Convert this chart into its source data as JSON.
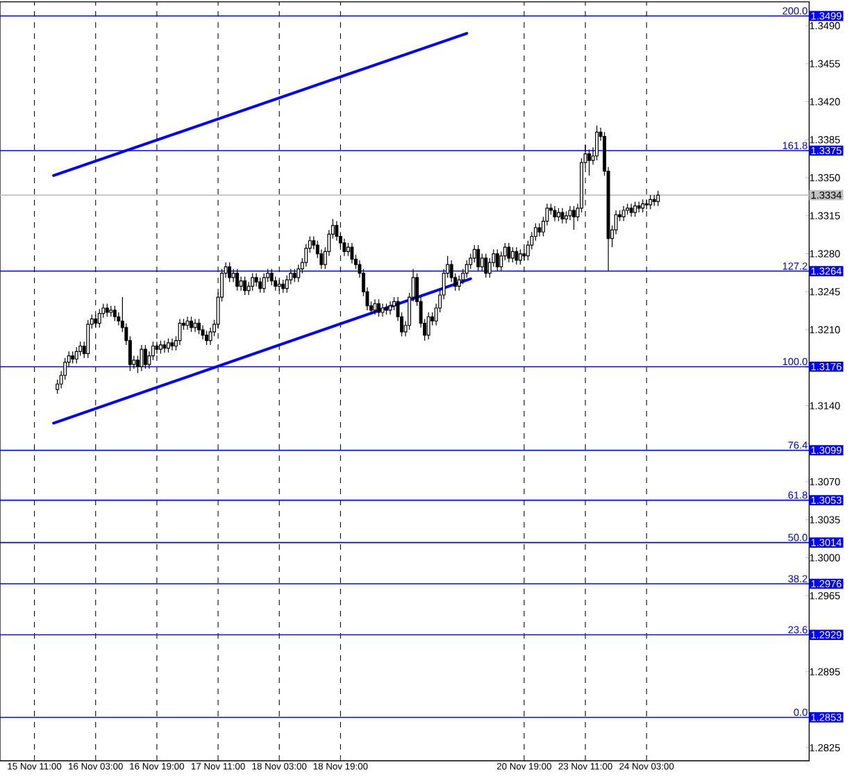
{
  "chart_data": {
    "type": "candlestick",
    "categories": [
      "15 Nov 11:00",
      null,
      null,
      null,
      null,
      null,
      null,
      null,
      null,
      null,
      null,
      null,
      null,
      null,
      null,
      null,
      "16 Nov 03:00",
      null,
      null,
      null,
      null,
      null,
      null,
      null,
      null,
      null,
      null,
      null,
      null,
      null,
      null,
      null,
      "16 Nov 19:00",
      null,
      null,
      null,
      null,
      null,
      null,
      null,
      null,
      null,
      null,
      null,
      null,
      null,
      null,
      null,
      "17 Nov 11:00",
      null,
      null,
      null,
      null,
      null,
      null,
      null,
      null,
      null,
      null,
      null,
      null,
      null,
      null,
      null,
      "18 Nov 03:00",
      null,
      null,
      null,
      null,
      null,
      null,
      null,
      null,
      null,
      null,
      null,
      null,
      null,
      null,
      null,
      "18 Nov 19:00",
      null,
      null,
      null,
      null,
      null,
      null,
      null,
      null,
      null,
      null,
      null,
      null,
      null,
      null,
      null,
      null,
      null,
      null,
      null,
      null,
      null,
      null,
      null,
      null,
      null,
      null,
      null,
      null,
      null,
      null,
      null,
      null,
      null,
      null,
      null,
      null,
      null,
      null,
      null,
      null,
      null,
      null,
      null,
      null,
      null,
      null,
      null,
      "20 Nov 19:00",
      null,
      null,
      null,
      null,
      null,
      null,
      null,
      null,
      null,
      null,
      null,
      null,
      null,
      null,
      null,
      "23 Nov 11:00",
      null,
      null,
      null,
      null,
      null,
      null,
      null,
      null,
      null,
      null,
      null,
      null,
      null,
      null,
      null,
      "24 Nov 03:00",
      null,
      null,
      null,
      null,
      null,
      null,
      null,
      null,
      null,
      null,
      null,
      null,
      null,
      null,
      null,
      null,
      null,
      null,
      null,
      null,
      null,
      null,
      null,
      null,
      null,
      null,
      null,
      null,
      null,
      null,
      null,
      null,
      null,
      null,
      null,
      null,
      null,
      null,
      null,
      null,
      null,
      null
    ],
    "ohlc": [
      null,
      null,
      null,
      null,
      null,
      null,
      [
        1.3155,
        1.3164,
        1.3151,
        1.316
      ],
      [
        1.316,
        1.3172,
        1.3156,
        1.3168
      ],
      [
        1.3168,
        1.3184,
        1.3164,
        1.318
      ],
      [
        1.318,
        1.319,
        1.3176,
        1.3186
      ],
      [
        1.3186,
        1.319,
        1.3179,
        1.3183
      ],
      [
        1.3183,
        1.3194,
        1.3179,
        1.319
      ],
      [
        1.319,
        1.3199,
        1.3186,
        1.3195
      ],
      [
        1.3195,
        1.3199,
        1.3184,
        1.3188
      ],
      [
        1.3188,
        1.3219,
        1.3184,
        1.3215
      ],
      [
        1.3215,
        1.3224,
        1.3211,
        1.322
      ],
      [
        1.322,
        1.3224,
        1.3212,
        1.3216
      ],
      [
        1.3216,
        1.3229,
        1.3212,
        1.3225
      ],
      [
        1.3225,
        1.3234,
        1.3221,
        1.323
      ],
      [
        1.323,
        1.3234,
        1.3222,
        1.3226
      ],
      [
        1.3226,
        1.3232,
        1.3222,
        1.3228
      ],
      [
        1.3228,
        1.3232,
        1.3218,
        1.3222
      ],
      [
        1.3222,
        1.3226,
        1.3214,
        1.3218
      ],
      [
        1.3218,
        1.324,
        1.3208,
        1.3212
      ],
      [
        1.3212,
        1.3216,
        1.3196,
        1.32
      ],
      [
        1.32,
        1.3204,
        1.3172,
        1.3178
      ],
      [
        1.3178,
        1.3186,
        1.3174,
        1.3182
      ],
      [
        1.3182,
        1.3186,
        1.317,
        1.3176
      ],
      [
        1.3176,
        1.3196,
        1.3172,
        1.3192
      ],
      [
        1.3192,
        1.3196,
        1.3174,
        1.3178
      ],
      [
        1.3178,
        1.319,
        1.3174,
        1.3186
      ],
      [
        1.3186,
        1.3199,
        1.3182,
        1.3195
      ],
      [
        1.3195,
        1.3199,
        1.3188,
        1.3192
      ],
      [
        1.3192,
        1.32,
        1.3188,
        1.3196
      ],
      [
        1.3196,
        1.32,
        1.3189,
        1.3193
      ],
      [
        1.3193,
        1.3202,
        1.3189,
        1.3198
      ],
      [
        1.3198,
        1.3202,
        1.3191,
        1.3195
      ],
      [
        1.3195,
        1.3204,
        1.3191,
        1.32
      ],
      [
        1.32,
        1.322,
        1.3196,
        1.3216
      ],
      [
        1.3216,
        1.322,
        1.321,
        1.3214
      ],
      [
        1.3214,
        1.3222,
        1.321,
        1.3218
      ],
      [
        1.3218,
        1.3222,
        1.3208,
        1.3212
      ],
      [
        1.3212,
        1.322,
        1.3208,
        1.3216
      ],
      [
        1.3216,
        1.322,
        1.3206,
        1.321
      ],
      [
        1.321,
        1.3214,
        1.3201,
        1.3205
      ],
      [
        1.3205,
        1.3209,
        1.3196,
        1.32
      ],
      [
        1.32,
        1.3212,
        1.3196,
        1.3208
      ],
      [
        1.3208,
        1.3219,
        1.3204,
        1.3215
      ],
      [
        1.3215,
        1.3244,
        1.3211,
        1.324
      ],
      [
        1.324,
        1.3266,
        1.3236,
        1.3262
      ],
      [
        1.3262,
        1.3272,
        1.3258,
        1.3268
      ],
      [
        1.3268,
        1.3272,
        1.3254,
        1.3258
      ],
      [
        1.3258,
        1.3266,
        1.3254,
        1.3262
      ],
      [
        1.3262,
        1.3266,
        1.3246,
        1.325
      ],
      [
        1.325,
        1.3259,
        1.3246,
        1.3255
      ],
      [
        1.3255,
        1.3259,
        1.3242,
        1.3246
      ],
      [
        1.3246,
        1.3254,
        1.3242,
        1.325
      ],
      [
        1.325,
        1.3262,
        1.3246,
        1.3258
      ],
      [
        1.3258,
        1.3262,
        1.325,
        1.3254
      ],
      [
        1.3254,
        1.3258,
        1.3244,
        1.3248
      ],
      [
        1.3248,
        1.3262,
        1.3244,
        1.3258
      ],
      [
        1.3258,
        1.3266,
        1.3254,
        1.3262
      ],
      [
        1.3262,
        1.3266,
        1.3251,
        1.3255
      ],
      [
        1.3255,
        1.3259,
        1.3246,
        1.325
      ],
      [
        1.325,
        1.3256,
        1.3246,
        1.3252
      ],
      [
        1.3252,
        1.3256,
        1.3244,
        1.3248
      ],
      [
        1.3248,
        1.326,
        1.3244,
        1.3256
      ],
      [
        1.3256,
        1.3266,
        1.3252,
        1.3262
      ],
      [
        1.3262,
        1.3266,
        1.3254,
        1.3258
      ],
      [
        1.3258,
        1.327,
        1.3254,
        1.3266
      ],
      [
        1.3266,
        1.3276,
        1.3262,
        1.3272
      ],
      [
        1.3272,
        1.3289,
        1.3268,
        1.3285
      ],
      [
        1.3285,
        1.3296,
        1.3281,
        1.3292
      ],
      [
        1.3292,
        1.3296,
        1.3284,
        1.3288
      ],
      [
        1.3288,
        1.3292,
        1.3276,
        1.328
      ],
      [
        1.328,
        1.3284,
        1.3266,
        1.327
      ],
      [
        1.327,
        1.3286,
        1.3266,
        1.3282
      ],
      [
        1.3282,
        1.3302,
        1.3278,
        1.3298
      ],
      [
        1.3298,
        1.3312,
        1.3294,
        1.3306
      ],
      [
        1.3306,
        1.331,
        1.3292,
        1.3296
      ],
      [
        1.3296,
        1.33,
        1.3286,
        1.329
      ],
      [
        1.329,
        1.3294,
        1.3278,
        1.3282
      ],
      [
        1.3282,
        1.329,
        1.3278,
        1.3286
      ],
      [
        1.3286,
        1.329,
        1.3271,
        1.3275
      ],
      [
        1.3275,
        1.3279,
        1.3266,
        1.327
      ],
      [
        1.327,
        1.3274,
        1.3258,
        1.3262
      ],
      [
        1.3262,
        1.3266,
        1.3241,
        1.3245
      ],
      [
        1.3245,
        1.3249,
        1.3228,
        1.3232
      ],
      [
        1.3232,
        1.3236,
        1.3224,
        1.3228
      ],
      [
        1.3228,
        1.3238,
        1.3224,
        1.3234
      ],
      [
        1.3234,
        1.3238,
        1.3222,
        1.3226
      ],
      [
        1.3226,
        1.3234,
        1.3222,
        1.323
      ],
      [
        1.323,
        1.3234,
        1.3224,
        1.3228
      ],
      [
        1.3228,
        1.3236,
        1.3224,
        1.3232
      ],
      [
        1.3232,
        1.324,
        1.3228,
        1.3236
      ],
      [
        1.3236,
        1.324,
        1.3218,
        1.3222
      ],
      [
        1.3222,
        1.3226,
        1.3204,
        1.3208
      ],
      [
        1.3208,
        1.3218,
        1.3204,
        1.3214
      ],
      [
        1.3214,
        1.3244,
        1.321,
        1.324
      ],
      [
        1.324,
        1.3266,
        1.3236,
        1.3258
      ],
      [
        1.3258,
        1.3262,
        1.3232,
        1.3236
      ],
      [
        1.3236,
        1.324,
        1.3212,
        1.3216
      ],
      [
        1.3216,
        1.322,
        1.32,
        1.3205
      ],
      [
        1.3205,
        1.3226,
        1.3201,
        1.3222
      ],
      [
        1.3222,
        1.3226,
        1.3214,
        1.3218
      ],
      [
        1.3218,
        1.3234,
        1.3214,
        1.323
      ],
      [
        1.323,
        1.3246,
        1.3226,
        1.3242
      ],
      [
        1.3242,
        1.3266,
        1.3238,
        1.3262
      ],
      [
        1.3262,
        1.3278,
        1.3258,
        1.327
      ],
      [
        1.327,
        1.3274,
        1.3254,
        1.3258
      ],
      [
        1.3258,
        1.3262,
        1.3246,
        1.325
      ],
      [
        1.325,
        1.326,
        1.3246,
        1.3256
      ],
      [
        1.3256,
        1.3266,
        1.3252,
        1.3262
      ],
      [
        1.3262,
        1.3274,
        1.3258,
        1.327
      ],
      [
        1.327,
        1.328,
        1.3266,
        1.3276
      ],
      [
        1.3276,
        1.3288,
        1.3272,
        1.3284
      ],
      [
        1.3284,
        1.3288,
        1.3264,
        1.3268
      ],
      [
        1.3268,
        1.328,
        1.3264,
        1.3276
      ],
      [
        1.3276,
        1.328,
        1.3258,
        1.3262
      ],
      [
        1.3262,
        1.3276,
        1.3258,
        1.3272
      ],
      [
        1.3272,
        1.3284,
        1.3268,
        1.328
      ],
      [
        1.328,
        1.3284,
        1.3264,
        1.3268
      ],
      [
        1.3268,
        1.3282,
        1.3264,
        1.3278
      ],
      [
        1.3278,
        1.329,
        1.3274,
        1.3286
      ],
      [
        1.3286,
        1.329,
        1.3272,
        1.3276
      ],
      [
        1.3276,
        1.3286,
        1.3272,
        1.3282
      ],
      [
        1.3282,
        1.3286,
        1.327,
        1.3274
      ],
      [
        1.3274,
        1.3284,
        1.327,
        1.328
      ],
      [
        1.328,
        1.3284,
        1.3274,
        1.3278
      ],
      [
        1.3278,
        1.3292,
        1.3274,
        1.3288
      ],
      [
        1.3288,
        1.33,
        1.3284,
        1.3296
      ],
      [
        1.3296,
        1.3308,
        1.3292,
        1.3304
      ],
      [
        1.3304,
        1.3308,
        1.3296,
        1.33
      ],
      [
        1.33,
        1.3314,
        1.3296,
        1.331
      ],
      [
        1.331,
        1.3326,
        1.3306,
        1.3322
      ],
      [
        1.3322,
        1.3326,
        1.3316,
        1.332
      ],
      [
        1.332,
        1.3324,
        1.331,
        1.3314
      ],
      [
        1.3314,
        1.3322,
        1.331,
        1.3318
      ],
      [
        1.3318,
        1.3322,
        1.3308,
        1.3312
      ],
      [
        1.3312,
        1.3319,
        1.3308,
        1.3315
      ],
      [
        1.3315,
        1.3324,
        1.3311,
        1.332
      ],
      [
        1.332,
        1.3324,
        1.3302,
        1.3314
      ],
      [
        1.3314,
        1.3326,
        1.331,
        1.3322
      ],
      [
        1.3322,
        1.3368,
        1.3318,
        1.3364
      ],
      [
        1.3364,
        1.338,
        1.336,
        1.3372
      ],
      [
        1.3372,
        1.3376,
        1.3352,
        1.3366
      ],
      [
        1.3366,
        1.3378,
        1.3362,
        1.337
      ],
      [
        1.337,
        1.3398,
        1.3366,
        1.3392
      ],
      [
        1.3392,
        1.3396,
        1.3384,
        1.3388
      ],
      [
        1.3388,
        1.3392,
        1.3352,
        1.3356
      ],
      [
        1.3356,
        1.336,
        1.3264,
        1.3294
      ],
      [
        1.3294,
        1.3306,
        1.3286,
        1.3302
      ],
      [
        1.3302,
        1.332,
        1.3298,
        1.3316
      ],
      [
        1.3316,
        1.332,
        1.331,
        1.3314
      ],
      [
        1.3314,
        1.3324,
        1.331,
        1.332
      ],
      [
        1.332,
        1.3326,
        1.3316,
        1.3322
      ],
      [
        1.3322,
        1.3326,
        1.3314,
        1.3318
      ],
      [
        1.3318,
        1.3328,
        1.3314,
        1.3324
      ],
      [
        1.3324,
        1.3328,
        1.3318,
        1.3322
      ],
      [
        1.3322,
        1.333,
        1.3318,
        1.3326
      ],
      [
        1.3326,
        1.333,
        1.3321,
        1.3325
      ],
      [
        1.3325,
        1.3334,
        1.3321,
        1.333
      ],
      [
        1.333,
        1.3334,
        1.3324,
        1.3328
      ],
      [
        1.3328,
        1.3338,
        1.3324,
        1.3334
      ],
      null,
      null,
      null,
      null,
      null,
      null,
      null,
      null,
      null,
      null,
      null,
      null,
      null,
      null,
      null,
      null,
      null,
      null,
      null,
      null,
      null,
      null,
      null,
      null,
      null,
      null,
      null,
      null,
      null,
      null,
      null,
      null,
      null,
      null,
      null,
      null,
      null,
      null,
      null
    ],
    "series": [
      {
        "type": "line",
        "color": "#0000ff",
        "values": [
          null,
          null,
          null,
          null,
          null,
          1.3352,
          null,
          null,
          null,
          null,
          null,
          null,
          null,
          null,
          null,
          null,
          null,
          null,
          null,
          null,
          null,
          null,
          null,
          null,
          null,
          null,
          null,
          null,
          null,
          null,
          null,
          null,
          null,
          null,
          null,
          null,
          null,
          null,
          null,
          null,
          null,
          null,
          null,
          null,
          null,
          null,
          null,
          null,
          null,
          null,
          null,
          null,
          null,
          null,
          null,
          null,
          null,
          null,
          null,
          null,
          null,
          null,
          null,
          null,
          null,
          null,
          null,
          null,
          null,
          null,
          null,
          null,
          null,
          null,
          null,
          null,
          null,
          null,
          null,
          null,
          null,
          null,
          null,
          null,
          null,
          null,
          null,
          null,
          null,
          null,
          null,
          null,
          null,
          null,
          null,
          null,
          null,
          null,
          null,
          null,
          null,
          null,
          null,
          null,
          null,
          null,
          null,
          null,
          null,
          null,
          null,
          null,
          null,
          1.3483,
          null,
          null,
          null,
          null,
          null,
          null,
          null,
          null,
          null,
          null,
          null,
          null,
          null,
          null,
          null,
          null,
          null,
          null,
          null,
          null,
          null,
          null,
          null,
          null,
          null,
          null,
          null,
          null,
          null,
          null,
          null,
          null,
          null,
          null,
          null,
          null,
          null,
          null,
          null,
          null,
          null,
          null,
          null,
          null,
          null,
          null,
          null,
          null,
          null,
          null,
          null,
          null,
          null,
          null,
          null,
          null,
          null,
          null,
          null,
          null,
          null,
          null,
          null,
          null,
          null,
          null,
          null,
          null,
          null,
          null,
          null,
          null,
          null,
          null,
          null,
          null,
          null,
          null,
          null,
          null,
          null,
          null,
          null,
          null,
          null,
          null,
          null,
          null,
          null
        ]
      },
      {
        "type": "line",
        "color": "#0000ff",
        "values": [
          null,
          null,
          null,
          null,
          null,
          1.3124,
          null,
          null,
          null,
          null,
          null,
          null,
          null,
          null,
          null,
          null,
          null,
          null,
          null,
          null,
          null,
          null,
          null,
          null,
          null,
          null,
          null,
          null,
          null,
          null,
          null,
          null,
          null,
          null,
          null,
          null,
          null,
          null,
          null,
          null,
          null,
          null,
          null,
          null,
          null,
          null,
          null,
          null,
          null,
          null,
          null,
          null,
          null,
          null,
          null,
          null,
          null,
          null,
          null,
          null,
          null,
          null,
          null,
          null,
          null,
          null,
          null,
          null,
          null,
          null,
          null,
          null,
          null,
          null,
          null,
          null,
          null,
          null,
          null,
          null,
          null,
          null,
          null,
          null,
          null,
          null,
          null,
          null,
          null,
          null,
          null,
          null,
          null,
          null,
          null,
          null,
          null,
          null,
          null,
          null,
          null,
          null,
          null,
          null,
          null,
          null,
          null,
          null,
          null,
          null,
          null,
          null,
          null,
          null,
          1.3257,
          null,
          null,
          null,
          null,
          null,
          null,
          null,
          null,
          null,
          null,
          null,
          null,
          null,
          null,
          null,
          null,
          null,
          null,
          null,
          null,
          null,
          null,
          null,
          null,
          null,
          null,
          null,
          null,
          null,
          null,
          null,
          null,
          null,
          null,
          null,
          null,
          null,
          null,
          null,
          null,
          null,
          null,
          null,
          null,
          null,
          null,
          null,
          null,
          null,
          null,
          null,
          null,
          null,
          null,
          null,
          null,
          null,
          null,
          null,
          null,
          null,
          null,
          null,
          null,
          null,
          null,
          null,
          null,
          null,
          null,
          null,
          null,
          null,
          null,
          null,
          null,
          null,
          null,
          null,
          null,
          null,
          null,
          null,
          null,
          null,
          null,
          null,
          null
        ]
      }
    ],
    "annotations": [
      {
        "text": "200.0",
        "y": 1.3499
      },
      {
        "text": "161.8",
        "y": 1.3375
      },
      {
        "text": "127.2",
        "y": 1.3264
      },
      {
        "text": "100.0",
        "y": 1.3176
      },
      {
        "text": "76.4",
        "y": 1.3099
      },
      {
        "text": "61.8",
        "y": 1.3053
      },
      {
        "text": "50.0",
        "y": 1.3014
      },
      {
        "text": "38.2",
        "y": 1.2976
      },
      {
        "text": "23.6",
        "y": 1.2929
      },
      {
        "text": "0.0",
        "y": 1.2853
      }
    ],
    "ylim": [
      1.2813,
      1.3512
    ],
    "yticks": [
      {
        "value": 1.2825,
        "label": "1.2825"
      },
      {
        "value": 1.2853,
        "label": "1.2853"
      },
      {
        "value": 1.286,
        "label": null
      },
      {
        "value": 1.2895,
        "label": "1.2895"
      },
      {
        "value": 1.2929,
        "label": "1.2929"
      },
      {
        "value": 1.293,
        "label": null
      },
      {
        "value": 1.2965,
        "label": "1.2965"
      },
      {
        "value": 1.2976,
        "label": "1.2976"
      },
      {
        "value": 1.3,
        "label": "1.3000"
      },
      {
        "value": 1.3014,
        "label": "1.3014"
      },
      {
        "value": 1.3035,
        "label": "1.3035"
      },
      {
        "value": 1.3053,
        "label": "1.3053"
      },
      {
        "value": 1.307,
        "label": "1.3070"
      },
      {
        "value": 1.3099,
        "label": "1.3099"
      },
      {
        "value": 1.3105,
        "label": null
      },
      {
        "value": 1.314,
        "label": "1.3140"
      },
      {
        "value": 1.3175,
        "label": null
      },
      {
        "value": 1.3176,
        "label": "1.3176"
      },
      {
        "value": 1.321,
        "label": "1.3210"
      },
      {
        "value": 1.3245,
        "label": "1.3245"
      },
      {
        "value": 1.3264,
        "label": "1.3264"
      },
      {
        "value": 1.328,
        "label": "1.3280"
      },
      {
        "value": 1.3315,
        "label": "1.3315"
      },
      {
        "value": 1.3334,
        "label": "1.3334"
      },
      {
        "value": 1.335,
        "label": "1.3350"
      },
      {
        "value": 1.3375,
        "label": "1.3375"
      },
      {
        "value": 1.3385,
        "label": "1.3385"
      },
      {
        "value": 1.342,
        "label": "1.3420"
      },
      {
        "value": 1.3455,
        "label": "1.3455"
      },
      {
        "value": 1.349,
        "label": "1.3490"
      },
      {
        "value": 1.3499,
        "label": "1.3499"
      }
    ],
    "ref_lines": [
      {
        "axis": "y",
        "value": 1.3499,
        "color": "#0000ff"
      },
      {
        "axis": "y",
        "value": 1.3375,
        "color": "#0000ff"
      },
      {
        "axis": "y",
        "value": 1.3264,
        "color": "#0000ff"
      },
      {
        "axis": "y",
        "value": 1.3176,
        "color": "#0000ff"
      },
      {
        "axis": "y",
        "value": 1.3099,
        "color": "#0000ff"
      },
      {
        "axis": "y",
        "value": 1.3053,
        "color": "#0000ff"
      },
      {
        "axis": "y",
        "value": 1.3014,
        "color": "#0000ff"
      },
      {
        "axis": "y",
        "value": 1.2976,
        "color": "#0000ff"
      },
      {
        "axis": "y",
        "value": 1.2929,
        "color": "#0000ff"
      },
      {
        "axis": "y",
        "value": 1.2853,
        "color": "#0000ff"
      },
      {
        "axis": "y",
        "value": 1.3334,
        "color": "#c0c0c0"
      }
    ],
    "grid": "x"
  }
}
